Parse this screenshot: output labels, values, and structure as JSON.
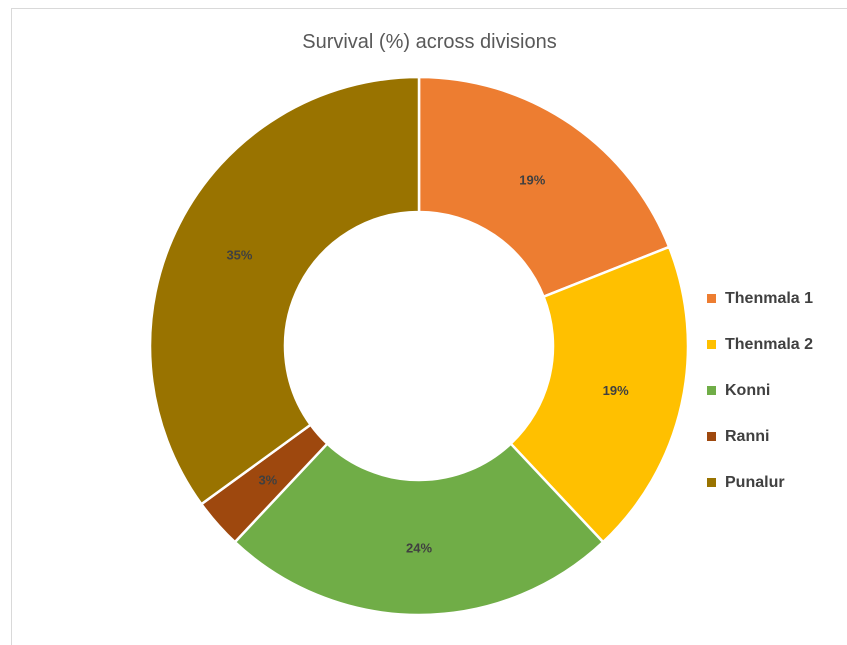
{
  "chart_data": {
    "type": "pie",
    "subtype": "donut",
    "title": "Survival (%) across divisions",
    "categories": [
      "Thenmala 1",
      "Thenmala 2",
      "Konni",
      "Ranni",
      "Punalur"
    ],
    "values": [
      19,
      19,
      24,
      3,
      35
    ],
    "value_labels": [
      "19%",
      "19%",
      "24%",
      "3%",
      "35%"
    ],
    "colors": [
      "#ED7D31",
      "#FFC000",
      "#70AD47",
      "#9E480E",
      "#997300"
    ],
    "legend_position": "right",
    "start_angle_deg": 0,
    "direction": "clockwise"
  }
}
